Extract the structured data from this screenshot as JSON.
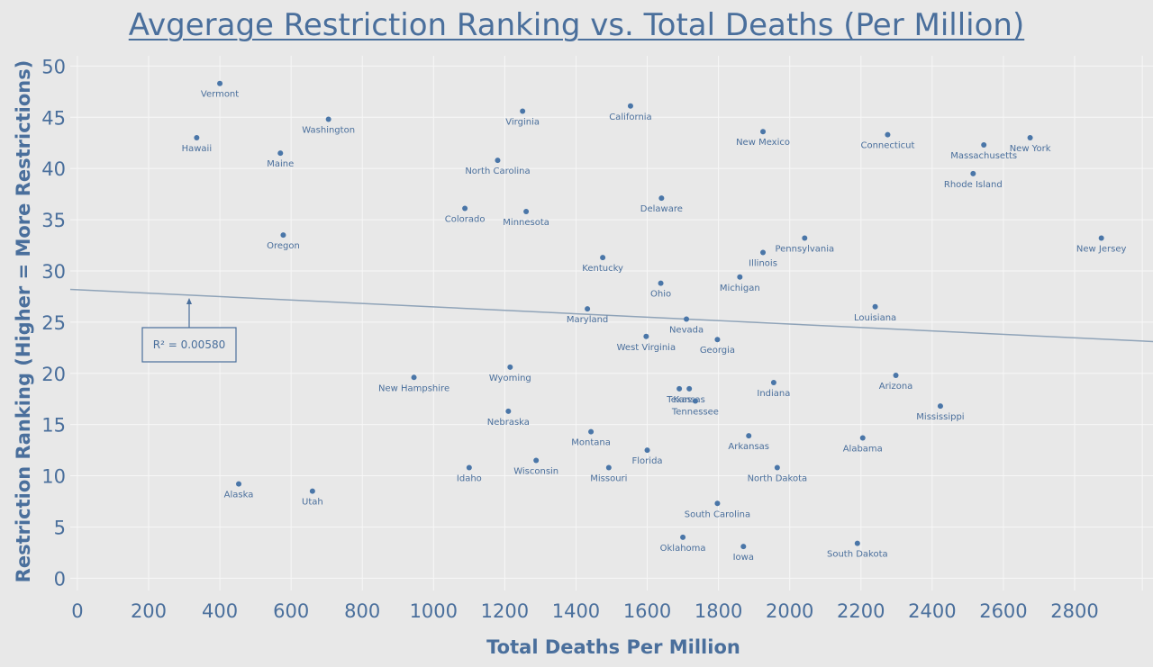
{
  "chart_data": {
    "type": "scatter",
    "title": "Avgerage Restriction Ranking vs. Total Deaths (Per Million)",
    "xlabel": "Total Deaths Per Million",
    "ylabel": "Restriction Ranking (Higher = More Restrictions)",
    "xlim": [
      -20,
      3020
    ],
    "ylim": [
      -1.2,
      51
    ],
    "x_ticks": [
      "0",
      "200",
      "400",
      "600",
      "800",
      "1000",
      "1200",
      "1400",
      "1600",
      "1800",
      "2000",
      "2200",
      "2400",
      "2600",
      "2800"
    ],
    "y_ticks": [
      "0",
      "5",
      "10",
      "15",
      "20",
      "25",
      "30",
      "35",
      "40",
      "45",
      "50"
    ],
    "grid": true,
    "trendline": {
      "x_start": -20,
      "y_start": 28.2,
      "x_end": 3020,
      "y_end": 23.1
    },
    "annotation": "R² = 0.00580",
    "points": [
      {
        "label": "Vermont",
        "x": 400,
        "y": 48.3
      },
      {
        "label": "Hawaii",
        "x": 335,
        "y": 43.0
      },
      {
        "label": "Washington",
        "x": 705,
        "y": 44.8
      },
      {
        "label": "Maine",
        "x": 570,
        "y": 41.5
      },
      {
        "label": "Oregon",
        "x": 578,
        "y": 33.5
      },
      {
        "label": "Alaska",
        "x": 453,
        "y": 9.2
      },
      {
        "label": "Utah",
        "x": 660,
        "y": 8.5
      },
      {
        "label": "Virginia",
        "x": 1250,
        "y": 45.6
      },
      {
        "label": "California",
        "x": 1553,
        "y": 46.1
      },
      {
        "label": "North Carolina",
        "x": 1180,
        "y": 40.8
      },
      {
        "label": "Colorado",
        "x": 1088,
        "y": 36.1
      },
      {
        "label": "Minnesota",
        "x": 1260,
        "y": 35.8
      },
      {
        "label": "Delaware",
        "x": 1640,
        "y": 37.1
      },
      {
        "label": "New Mexico",
        "x": 1925,
        "y": 43.6
      },
      {
        "label": "Connecticut",
        "x": 2275,
        "y": 43.3
      },
      {
        "label": "Massachusetts",
        "x": 2545,
        "y": 42.3
      },
      {
        "label": "New York",
        "x": 2675,
        "y": 43.0
      },
      {
        "label": "Rhode Island",
        "x": 2515,
        "y": 39.5
      },
      {
        "label": "New Jersey",
        "x": 2875,
        "y": 33.2
      },
      {
        "label": "Pennsylvania",
        "x": 2042,
        "y": 33.2
      },
      {
        "label": "Illinois",
        "x": 1925,
        "y": 31.8
      },
      {
        "label": "Kentucky",
        "x": 1475,
        "y": 31.3
      },
      {
        "label": "Ohio",
        "x": 1638,
        "y": 28.8
      },
      {
        "label": "Michigan",
        "x": 1860,
        "y": 29.4
      },
      {
        "label": "Louisiana",
        "x": 2240,
        "y": 26.5
      },
      {
        "label": "Maryland",
        "x": 1432,
        "y": 26.3
      },
      {
        "label": "Nevada",
        "x": 1710,
        "y": 25.3
      },
      {
        "label": "West Virginia",
        "x": 1597,
        "y": 23.6
      },
      {
        "label": "Georgia",
        "x": 1797,
        "y": 23.3
      },
      {
        "label": "Wyoming",
        "x": 1215,
        "y": 20.6
      },
      {
        "label": "New Hampshire",
        "x": 945,
        "y": 19.6
      },
      {
        "label": "Arizona",
        "x": 2298,
        "y": 19.8
      },
      {
        "label": "Indiana",
        "x": 1955,
        "y": 19.1
      },
      {
        "label": "Texas",
        "x": 1690,
        "y": 18.5
      },
      {
        "label": "Kansas",
        "x": 1718,
        "y": 18.5
      },
      {
        "label": "Tennessee",
        "x": 1735,
        "y": 17.3
      },
      {
        "label": "Mississippi",
        "x": 2423,
        "y": 16.8
      },
      {
        "label": "Nebraska",
        "x": 1210,
        "y": 16.3
      },
      {
        "label": "Montana",
        "x": 1442,
        "y": 14.3
      },
      {
        "label": "Arkansas",
        "x": 1885,
        "y": 13.9
      },
      {
        "label": "Alabama",
        "x": 2205,
        "y": 13.7
      },
      {
        "label": "Florida",
        "x": 1600,
        "y": 12.5
      },
      {
        "label": "Wisconsin",
        "x": 1288,
        "y": 11.5
      },
      {
        "label": "Idaho",
        "x": 1100,
        "y": 10.8
      },
      {
        "label": "Missouri",
        "x": 1492,
        "y": 10.8
      },
      {
        "label": "North Dakota",
        "x": 1965,
        "y": 10.8
      },
      {
        "label": "South Carolina",
        "x": 1797,
        "y": 7.3
      },
      {
        "label": "Oklahoma",
        "x": 1700,
        "y": 4.0
      },
      {
        "label": "Iowa",
        "x": 1870,
        "y": 3.1
      },
      {
        "label": "South Dakota",
        "x": 2190,
        "y": 3.4
      }
    ]
  }
}
